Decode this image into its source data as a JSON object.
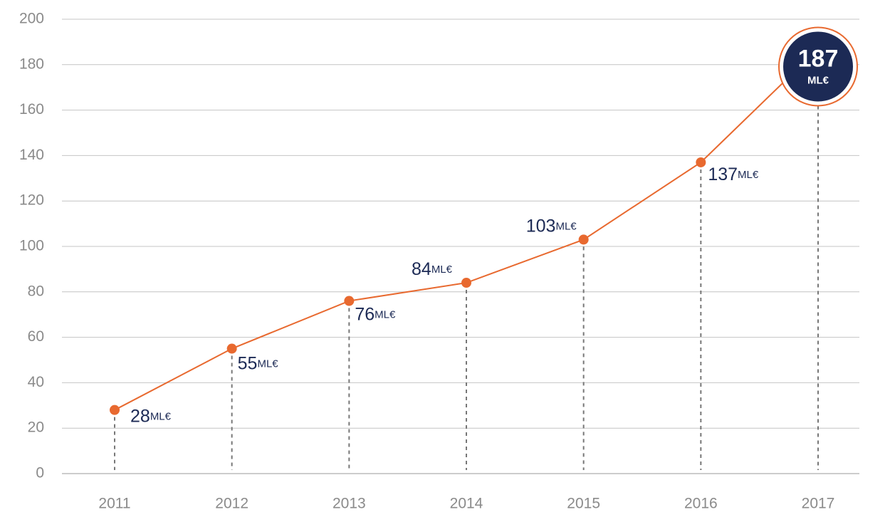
{
  "chart_data": {
    "type": "line",
    "categories": [
      "2011",
      "2012",
      "2013",
      "2014",
      "2015",
      "2016",
      "2017"
    ],
    "values": [
      28,
      55,
      76,
      84,
      103,
      137,
      187
    ],
    "value_unit": "ML€",
    "color": "#e8692f",
    "highlight_color": "#1c2a55",
    "ylim": [
      0,
      200
    ],
    "yticks": [
      0,
      20,
      40,
      60,
      80,
      100,
      120,
      140,
      160,
      180,
      200
    ],
    "grid": true
  }
}
